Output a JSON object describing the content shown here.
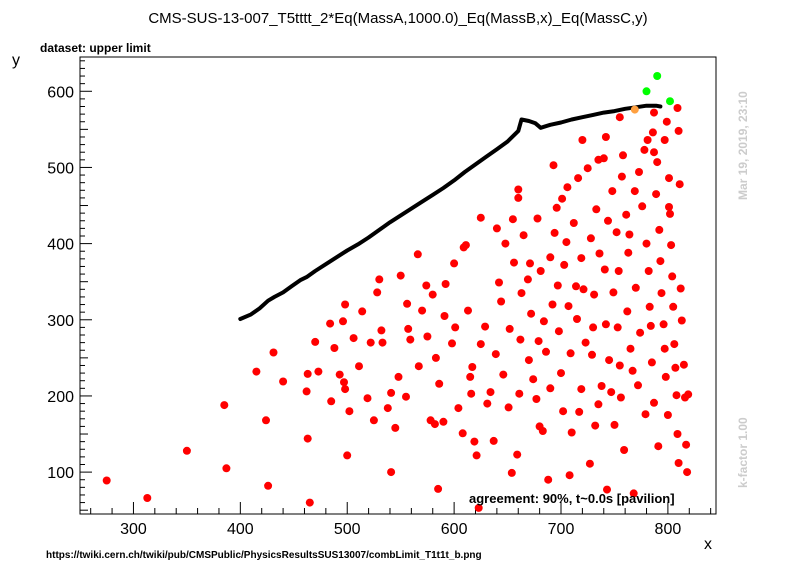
{
  "chart_data": {
    "type": "scatter",
    "title": "CMS-SUS-13-007_T5tttt_2*Eq(MassA,1000.0)_Eq(MassB,x)_Eq(MassC,y)",
    "subtitle": "dataset: upper limit",
    "xlabel": "x",
    "ylabel": "y",
    "xlim": [
      250,
      845
    ],
    "ylim": [
      45,
      645
    ],
    "x_ticks": [
      300,
      400,
      500,
      600,
      700,
      800
    ],
    "y_ticks": [
      100,
      200,
      300,
      400,
      500,
      600
    ],
    "grid": false,
    "legend": "none",
    "series": [
      {
        "color": "#ff0000",
        "points": [
          [
            275,
            89
          ],
          [
            313,
            66
          ],
          [
            350,
            128
          ],
          [
            385,
            188
          ],
          [
            387,
            105
          ],
          [
            415,
            232
          ],
          [
            424,
            168
          ],
          [
            426,
            82
          ],
          [
            431,
            257
          ],
          [
            440,
            219
          ],
          [
            463,
            144
          ],
          [
            463,
            229
          ],
          [
            462,
            206
          ],
          [
            465,
            60
          ],
          [
            470,
            271
          ],
          [
            473,
            232
          ],
          [
            484,
            295
          ],
          [
            485,
            193
          ],
          [
            488,
            263
          ],
          [
            493,
            228
          ],
          [
            496,
            298
          ],
          [
            497,
            218
          ],
          [
            498,
            209
          ],
          [
            498,
            320
          ],
          [
            500,
            122
          ],
          [
            502,
            180
          ],
          [
            506,
            276
          ],
          [
            511,
            239
          ],
          [
            514,
            311
          ],
          [
            519,
            197
          ],
          [
            522,
            270
          ],
          [
            525,
            168
          ],
          [
            528,
            336
          ],
          [
            530,
            353
          ],
          [
            532,
            286
          ],
          [
            533,
            270
          ],
          [
            538,
            184
          ],
          [
            541,
            100
          ],
          [
            541,
            204
          ],
          [
            545,
            158
          ],
          [
            548,
            225
          ],
          [
            550,
            358
          ],
          [
            555,
            199
          ],
          [
            556,
            321
          ],
          [
            557,
            288
          ],
          [
            559,
            274
          ],
          [
            566,
            386
          ],
          [
            567,
            239
          ],
          [
            570,
            312
          ],
          [
            574,
            345
          ],
          [
            575,
            278
          ],
          [
            578,
            168
          ],
          [
            580,
            333
          ],
          [
            582,
            163
          ],
          [
            583,
            250
          ],
          [
            585,
            78
          ],
          [
            586,
            216
          ],
          [
            590,
            166
          ],
          [
            591,
            305
          ],
          [
            592,
            347
          ],
          [
            598,
            269
          ],
          [
            600,
            374
          ],
          [
            601,
            290
          ],
          [
            604,
            184
          ],
          [
            608,
            151
          ],
          [
            609,
            395
          ],
          [
            611,
            398
          ],
          [
            613,
            312
          ],
          [
            615,
            225
          ],
          [
            616,
            203
          ],
          [
            617,
            238
          ],
          [
            619,
            140
          ],
          [
            621,
            122
          ],
          [
            623,
            53
          ],
          [
            625,
            434
          ],
          [
            625,
            268
          ],
          [
            629,
            291
          ],
          [
            631,
            190
          ],
          [
            634,
            205
          ],
          [
            637,
            141
          ],
          [
            639,
            255
          ],
          [
            640,
            420
          ],
          [
            642,
            349
          ],
          [
            644,
            324
          ],
          [
            646,
            228
          ],
          [
            648,
            400
          ],
          [
            651,
            185
          ],
          [
            652,
            288
          ],
          [
            654,
            99
          ],
          [
            655,
            432
          ],
          [
            656,
            375
          ],
          [
            659,
            123
          ],
          [
            660,
            460
          ],
          [
            660,
            471
          ],
          [
            661,
            203
          ],
          [
            662,
            274
          ],
          [
            663,
            335
          ],
          [
            665,
            411
          ],
          [
            669,
            353
          ],
          [
            670,
            247
          ],
          [
            671,
            374
          ],
          [
            672,
            308
          ],
          [
            674,
            222
          ],
          [
            677,
            196
          ],
          [
            678,
            433
          ],
          [
            679,
            272
          ],
          [
            680,
            160
          ],
          [
            681,
            364
          ],
          [
            683,
            154
          ],
          [
            684,
            298
          ],
          [
            686,
            258
          ],
          [
            688,
            90
          ],
          [
            690,
            210
          ],
          [
            690,
            382
          ],
          [
            692,
            320
          ],
          [
            694,
            414
          ],
          [
            696,
            447
          ],
          [
            697,
            345
          ],
          [
            698,
            285
          ],
          [
            700,
            230
          ],
          [
            702,
            180
          ],
          [
            703,
            372
          ],
          [
            705,
            402
          ],
          [
            706,
            474
          ],
          [
            707,
            318
          ],
          [
            708,
            96
          ],
          [
            709,
            256
          ],
          [
            710,
            152
          ],
          [
            712,
            427
          ],
          [
            714,
            344
          ],
          [
            715,
            301
          ],
          [
            716,
            486
          ],
          [
            717,
            179
          ],
          [
            719,
            209
          ],
          [
            719,
            381
          ],
          [
            721,
            340
          ],
          [
            723,
            270
          ],
          [
            725,
            499
          ],
          [
            727,
            111
          ],
          [
            728,
            407
          ],
          [
            729,
            254
          ],
          [
            730,
            290
          ],
          [
            731,
            333
          ],
          [
            732,
            161
          ],
          [
            733,
            445
          ],
          [
            735,
            189
          ],
          [
            736,
            387
          ],
          [
            738,
            213
          ],
          [
            740,
            512
          ],
          [
            741,
            366
          ],
          [
            742,
            294
          ],
          [
            743,
            77
          ],
          [
            744,
            430
          ],
          [
            745,
            247
          ],
          [
            747,
            205
          ],
          [
            748,
            469
          ],
          [
            749,
            336
          ],
          [
            750,
            162
          ],
          [
            752,
            415
          ],
          [
            753,
            290
          ],
          [
            754,
            364
          ],
          [
            755,
            240
          ],
          [
            756,
            198
          ],
          [
            757,
            488
          ],
          [
            758,
            516
          ],
          [
            759,
            129
          ],
          [
            761,
            438
          ],
          [
            762,
            311
          ],
          [
            763,
            388
          ],
          [
            764,
            412
          ],
          [
            765,
            262
          ],
          [
            767,
            233
          ],
          [
            768,
            72
          ],
          [
            769,
            469
          ],
          [
            770,
            342
          ],
          [
            772,
            214
          ],
          [
            773,
            494
          ],
          [
            774,
            283
          ],
          [
            776,
            449
          ],
          [
            778,
            523
          ],
          [
            779,
            176
          ],
          [
            780,
            400
          ],
          [
            782,
            364
          ],
          [
            783,
            317
          ],
          [
            784,
            292
          ],
          [
            785,
            244
          ],
          [
            786,
            546
          ],
          [
            787,
            191
          ],
          [
            789,
            465
          ],
          [
            790,
            507
          ],
          [
            791,
            134
          ],
          [
            792,
            418
          ],
          [
            793,
            377
          ],
          [
            794,
            335
          ],
          [
            796,
            294
          ],
          [
            797,
            262
          ],
          [
            798,
            225
          ],
          [
            799,
            560
          ],
          [
            800,
            175
          ],
          [
            801,
            486
          ],
          [
            802,
            439
          ],
          [
            803,
            398
          ],
          [
            804,
            357
          ],
          [
            805,
            317
          ],
          [
            806,
            268
          ],
          [
            807,
            237
          ],
          [
            808,
            201
          ],
          [
            809,
            150
          ],
          [
            810,
            112
          ],
          [
            811,
            478
          ],
          [
            812,
            341
          ],
          [
            813,
            299
          ],
          [
            815,
            241
          ],
          [
            816,
            198
          ],
          [
            817,
            136
          ],
          [
            818,
            100
          ],
          [
            819,
            202
          ],
          [
            797,
            536
          ],
          [
            801,
            448
          ],
          [
            742,
            540
          ],
          [
            735,
            510
          ],
          [
            720,
            536
          ],
          [
            693,
            503
          ],
          [
            701,
            459
          ],
          [
            755,
            566
          ],
          [
            781,
            536
          ],
          [
            787,
            572
          ],
          [
            809,
            578
          ],
          [
            810,
            548
          ],
          [
            787,
            520
          ]
        ]
      },
      {
        "color": "#00ff00",
        "points": [
          [
            780,
            600
          ],
          [
            790,
            620
          ],
          [
            802,
            587
          ]
        ]
      },
      {
        "color": "#ffa040",
        "points": [
          [
            769,
            576
          ]
        ]
      }
    ],
    "limit_curve": {
      "color": "#000000",
      "points": [
        [
          400,
          301
        ],
        [
          410,
          307
        ],
        [
          418,
          315
        ],
        [
          426,
          325
        ],
        [
          432,
          330
        ],
        [
          440,
          336
        ],
        [
          448,
          344
        ],
        [
          456,
          352
        ],
        [
          462,
          356
        ],
        [
          470,
          364
        ],
        [
          480,
          373
        ],
        [
          490,
          382
        ],
        [
          500,
          391
        ],
        [
          510,
          399
        ],
        [
          520,
          408
        ],
        [
          530,
          418
        ],
        [
          540,
          428
        ],
        [
          550,
          437
        ],
        [
          560,
          446
        ],
        [
          570,
          455
        ],
        [
          580,
          464
        ],
        [
          590,
          473
        ],
        [
          600,
          483
        ],
        [
          610,
          494
        ],
        [
          620,
          504
        ],
        [
          630,
          514
        ],
        [
          640,
          524
        ],
        [
          650,
          534
        ],
        [
          660,
          548
        ],
        [
          663,
          563
        ],
        [
          670,
          561
        ],
        [
          676,
          558
        ],
        [
          681,
          552
        ],
        [
          690,
          556
        ],
        [
          700,
          559
        ],
        [
          710,
          563
        ],
        [
          720,
          566
        ],
        [
          730,
          569
        ],
        [
          740,
          572
        ],
        [
          750,
          574
        ],
        [
          760,
          577
        ],
        [
          770,
          579
        ],
        [
          780,
          581
        ],
        [
          789,
          581
        ],
        [
          793,
          580
        ]
      ]
    }
  },
  "annotations": {
    "date": "Mar 19, 2019, 23:10",
    "kfactor": "k-factor 1.00",
    "agreement": "agreement: 90%, t~0.0s [pavilion]",
    "source_url": "https://twiki.cern.ch/twiki/pub/CMSPublic/PhysicsResultsSUS13007/combLimit_T1t1t_b.png"
  }
}
